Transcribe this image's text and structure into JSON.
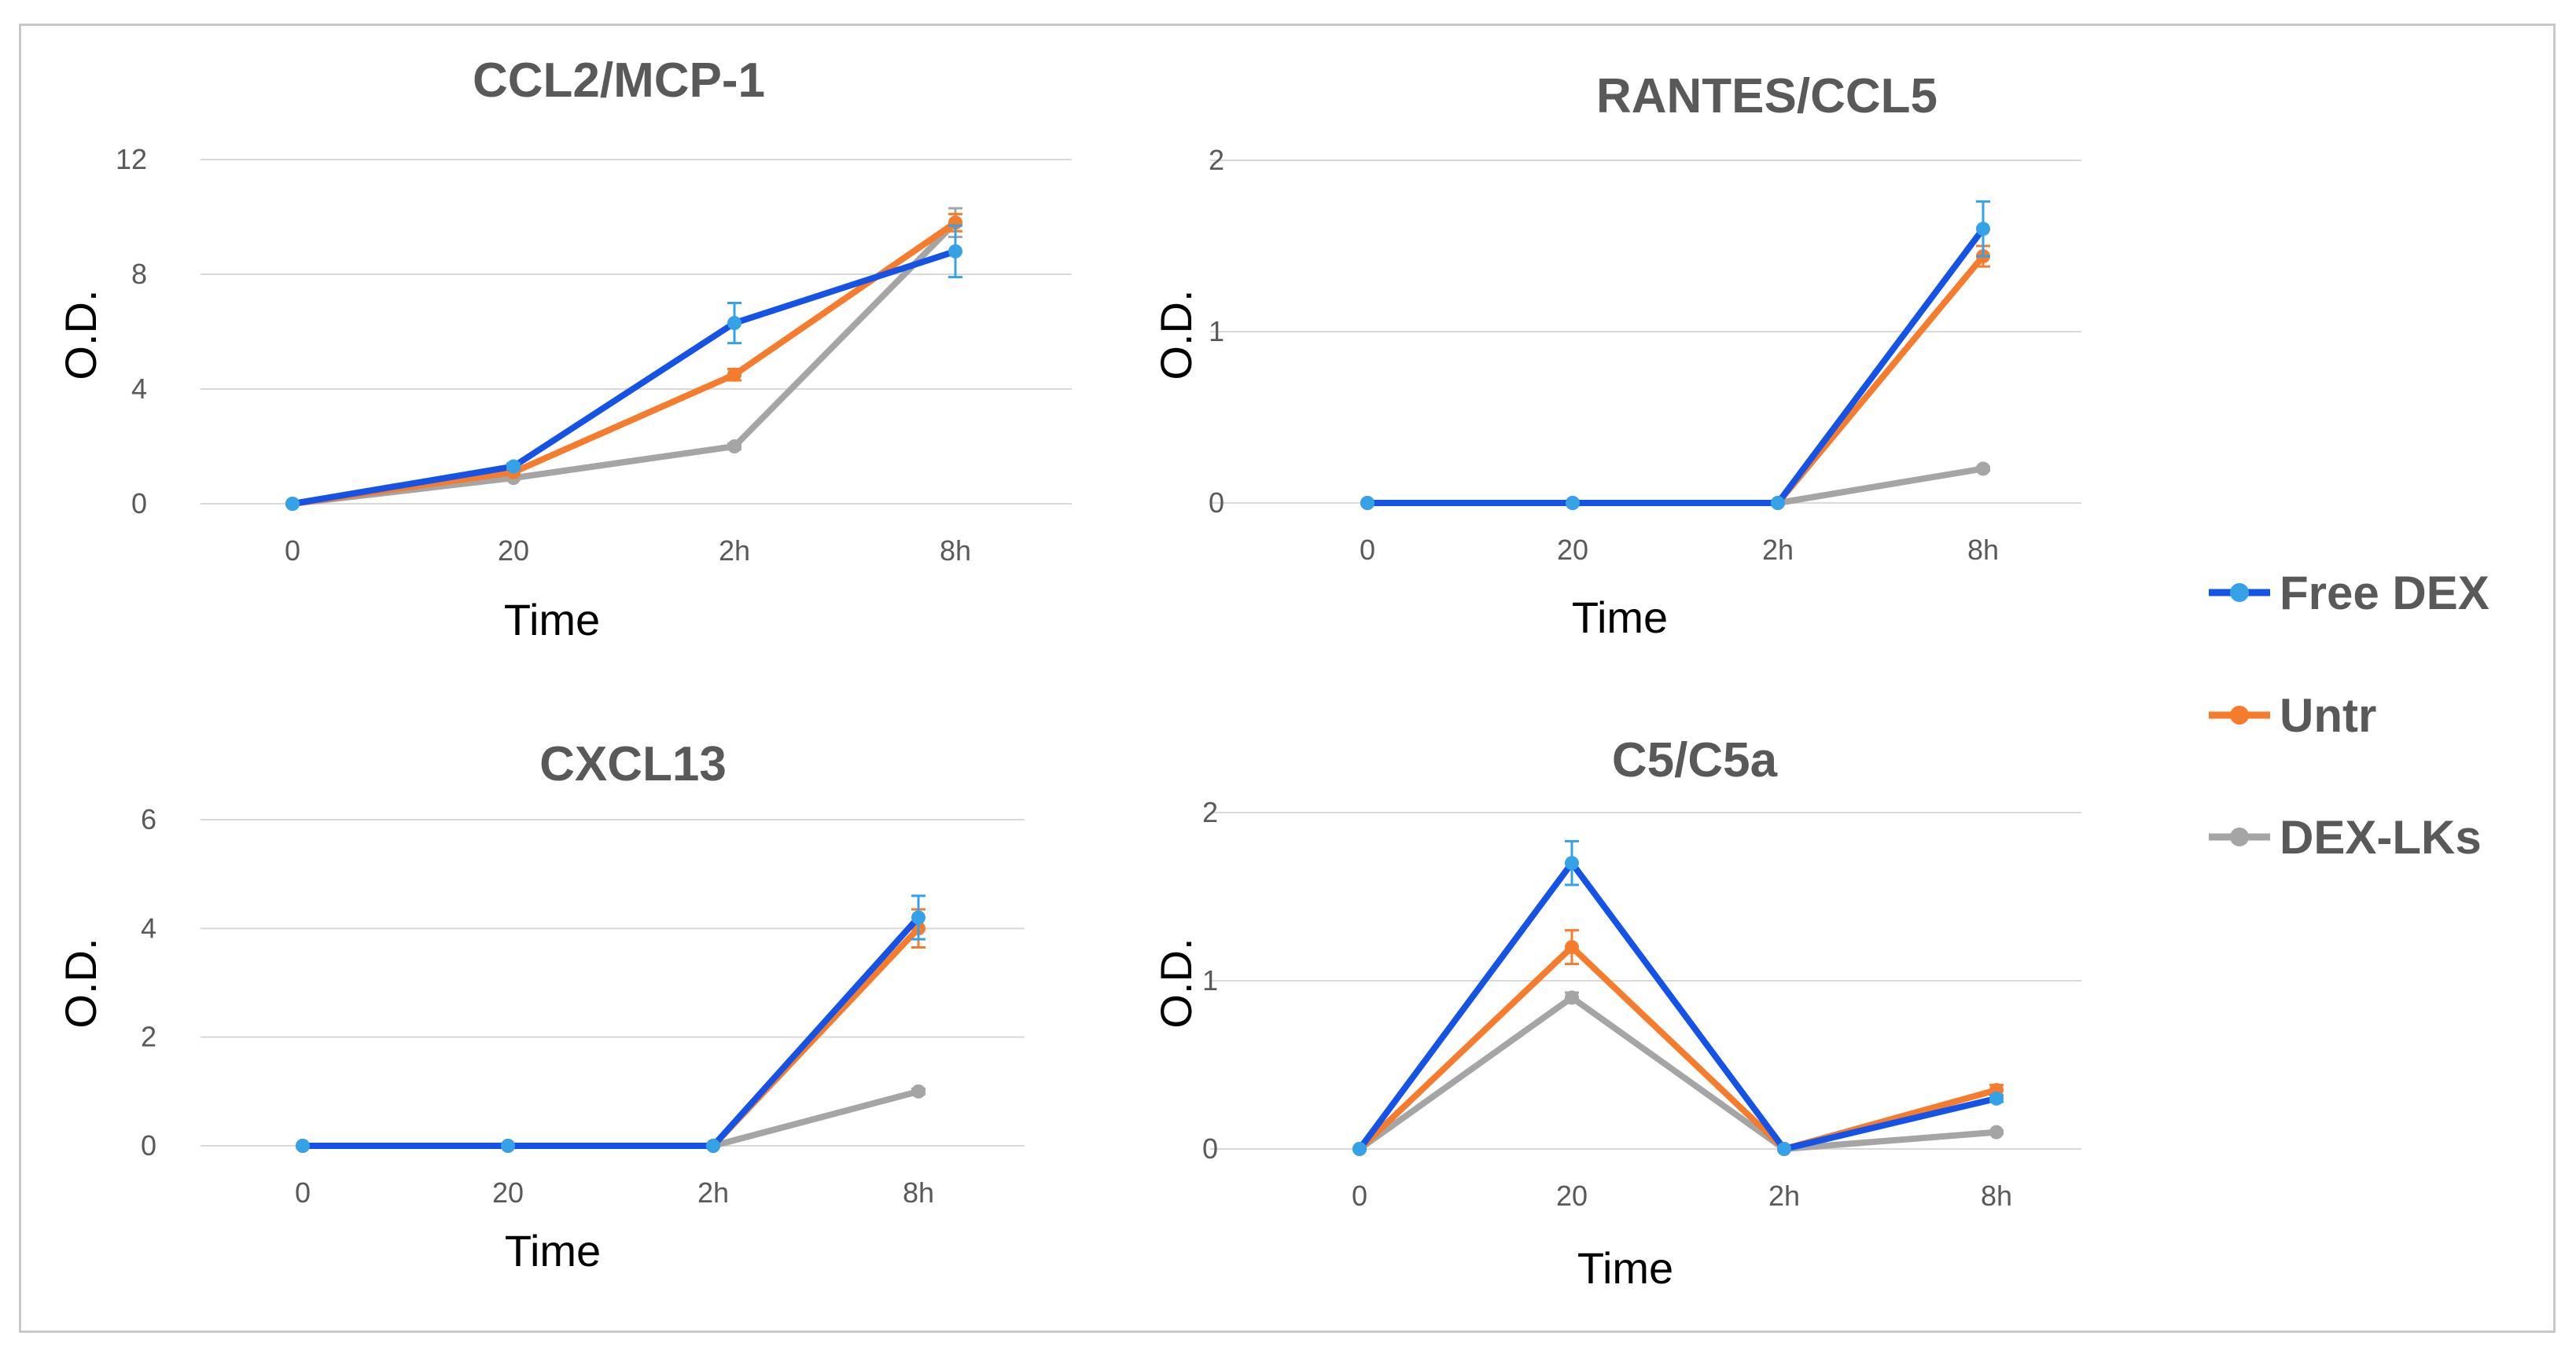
{
  "colors": {
    "Free DEX": "#1553e6",
    "Untr": "#f47c2c",
    "DEX-LKs": "#a5a5a5",
    "free_dex_marker": "#35a2e8"
  },
  "legend": {
    "items": [
      "Free DEX",
      "Untr",
      "DEX-LKs"
    ]
  },
  "chart_data": [
    {
      "type": "line",
      "title": "CCL2/MCP-1",
      "xlabel": "Time",
      "ylabel": "O.D.",
      "categories": [
        "0",
        "20",
        "2h",
        "8h"
      ],
      "ylim": [
        0,
        12
      ],
      "yticks": [
        "0",
        "4",
        "8",
        "12"
      ],
      "series": [
        {
          "name": "Free DEX",
          "values": [
            0,
            1.3,
            6.3,
            8.8
          ],
          "errors": [
            0,
            0.1,
            0.7,
            0.9
          ]
        },
        {
          "name": "Untr",
          "values": [
            0,
            1.1,
            4.5,
            9.8
          ],
          "errors": [
            0,
            0.1,
            0.2,
            0.3
          ]
        },
        {
          "name": "DEX-LKs",
          "values": [
            0,
            0.9,
            2.0,
            9.8
          ],
          "errors": [
            0,
            0.05,
            0.1,
            0.5
          ]
        }
      ]
    },
    {
      "type": "line",
      "title": "RANTES/CCL5",
      "xlabel": "Time",
      "ylabel": "O.D.",
      "categories": [
        "0",
        "20",
        "2h",
        "8h"
      ],
      "ylim": [
        0,
        2
      ],
      "yticks": [
        "0",
        "1",
        "2"
      ],
      "series": [
        {
          "name": "Free DEX",
          "values": [
            0,
            0,
            0,
            1.6
          ],
          "errors": [
            0,
            0,
            0,
            0.16
          ]
        },
        {
          "name": "Untr",
          "values": [
            0,
            0,
            0,
            1.44
          ],
          "errors": [
            0,
            0,
            0,
            0.06
          ]
        },
        {
          "name": "DEX-LKs",
          "values": [
            0,
            0,
            0,
            0.2
          ],
          "errors": [
            0,
            0,
            0,
            0.01
          ]
        }
      ]
    },
    {
      "type": "line",
      "title": "CXCL13",
      "xlabel": "Time",
      "ylabel": "O.D.",
      "categories": [
        "0",
        "20",
        "2h",
        "8h"
      ],
      "ylim": [
        0,
        6
      ],
      "yticks": [
        "0",
        "2",
        "4",
        "6"
      ],
      "series": [
        {
          "name": "Free DEX",
          "values": [
            0,
            0,
            0,
            4.2
          ],
          "errors": [
            0,
            0,
            0,
            0.4
          ]
        },
        {
          "name": "Untr",
          "values": [
            0,
            0,
            0,
            4.0
          ],
          "errors": [
            0,
            0,
            0,
            0.35
          ]
        },
        {
          "name": "DEX-LKs",
          "values": [
            0,
            0,
            0,
            1.0
          ],
          "errors": [
            0,
            0,
            0,
            0.05
          ]
        }
      ]
    },
    {
      "type": "line",
      "title": "C5/C5a",
      "xlabel": "Time",
      "ylabel": "O.D.",
      "categories": [
        "0",
        "20",
        "2h",
        "8h"
      ],
      "ylim": [
        0,
        2
      ],
      "yticks": [
        "0",
        "1",
        "2"
      ],
      "series": [
        {
          "name": "Free DEX",
          "values": [
            0,
            1.7,
            0,
            0.3
          ],
          "errors": [
            0,
            0.13,
            0,
            0.02
          ]
        },
        {
          "name": "Untr",
          "values": [
            0,
            1.2,
            0,
            0.35
          ],
          "errors": [
            0,
            0.1,
            0,
            0.03
          ]
        },
        {
          "name": "DEX-LKs",
          "values": [
            0,
            0.9,
            0,
            0.1
          ],
          "errors": [
            0,
            0.03,
            0,
            0.01
          ]
        }
      ]
    }
  ]
}
